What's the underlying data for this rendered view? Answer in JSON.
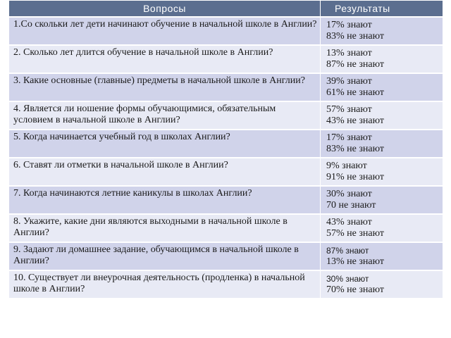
{
  "table": {
    "headers": {
      "questions": "Вопросы",
      "results": "Результаты"
    },
    "rows": [
      {
        "question": "1.Со скольки лет дети начинают обучение в начальной школе в Англии?",
        "known": "17% знают",
        "unknown": "83% не знают"
      },
      {
        "question": "2. Сколько лет длится обучение в начальной школе в Англии?",
        "known": "13% знают",
        "unknown": "87% не знают"
      },
      {
        "question": "3. Какие основные (главные) предметы в начальной школе в Англии?",
        "known": "39% знают",
        "unknown": "61% не знают"
      },
      {
        "question": "4. Является ли ношение формы обучающимися, обязательным условием в начальной школе в Англии?",
        "known": "57% знают",
        "unknown": "43% не знают"
      },
      {
        "question": "5. Когда начинается учебный год в школах Англии?",
        "known": "17% знают",
        "unknown": "83% не знают"
      },
      {
        "question": "6. Ставят ли отметки в начальной школе в Англии?",
        "known": "9% знают",
        "unknown": "91% не знают"
      },
      {
        "question": "7. Когда начинаются летние каникулы в школах Англии?",
        "known": "30% знают",
        "unknown": "70 не знают"
      },
      {
        "question": "8. Укажите, какие дни являются выходными в начальной школе в Англии?",
        "known": "43% знают",
        "unknown": "57% не знают"
      },
      {
        "question": "9. Задают ли домашнее задание, обучающимся в начальной школе в Англии?",
        "known": "87% знают",
        "unknown": "13% не знают"
      },
      {
        "question": "10. Существует ли внеурочная деятельность (продленка) в начальной школе в Англии?",
        "known": "30% знают",
        "unknown": "70% не знают"
      }
    ]
  }
}
